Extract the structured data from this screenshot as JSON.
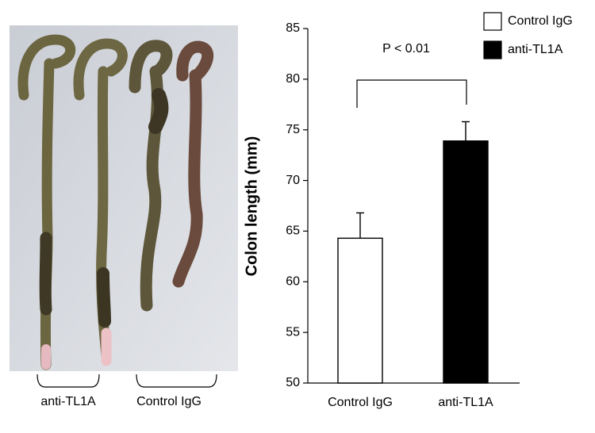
{
  "chart_data": {
    "type": "bar",
    "y_label": "Colon length (mm)",
    "annotation": "P < 0.01",
    "categories": [
      "Control IgG",
      "anti-TL1A"
    ],
    "values": [
      64.3,
      73.9
    ],
    "errors": [
      2.5,
      1.9
    ],
    "colors": [
      "#ffffff",
      "#000000"
    ],
    "ylim": [
      50,
      85
    ],
    "yticks": [
      50,
      55,
      60,
      65,
      70,
      75,
      80,
      85
    ],
    "legend": "top-right"
  },
  "photo": {
    "labels": [
      "anti-TL1A",
      "Control IgG"
    ]
  }
}
